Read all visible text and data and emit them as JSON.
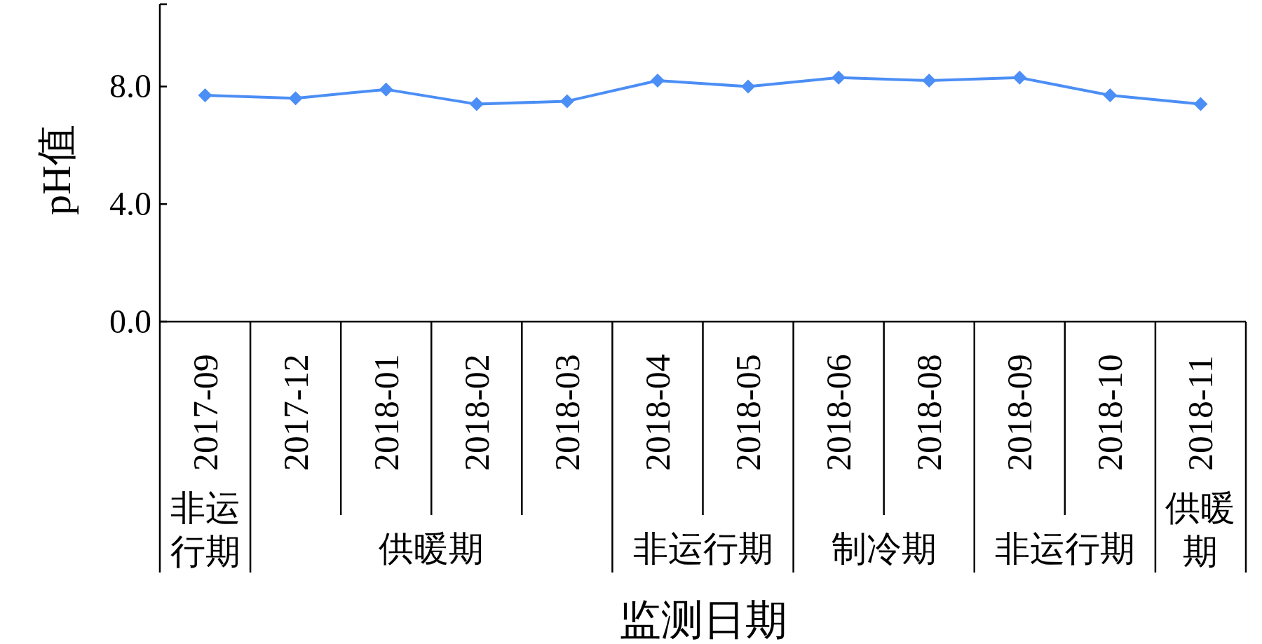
{
  "chart_data": {
    "type": "line",
    "xlabel": "监测日期",
    "ylabel": "pH值",
    "categories": [
      "2017-09",
      "2017-12",
      "2018-01",
      "2018-02",
      "2018-03",
      "2018-04",
      "2018-05",
      "2018-06",
      "2018-08",
      "2018-09",
      "2018-10",
      "2018-11"
    ],
    "series": [
      {
        "color": "#4b8ef5",
        "values": [
          7.7,
          7.6,
          7.9,
          7.4,
          7.5,
          8.2,
          8.0,
          8.3,
          8.2,
          8.3,
          7.7,
          7.4
        ]
      }
    ],
    "annotations": [
      "非运行期",
      "供暖期",
      "非运行期",
      "制冷期",
      "非运行期",
      "供暖期"
    ],
    "ylim": [
      0,
      10.8
    ],
    "yticks": [
      {
        "value": 0,
        "label": "0.0"
      },
      {
        "value": 4,
        "label": "4.0"
      },
      {
        "value": 8,
        "label": "8.0"
      }
    ],
    "marker": "diamond",
    "line_style": "solid"
  }
}
